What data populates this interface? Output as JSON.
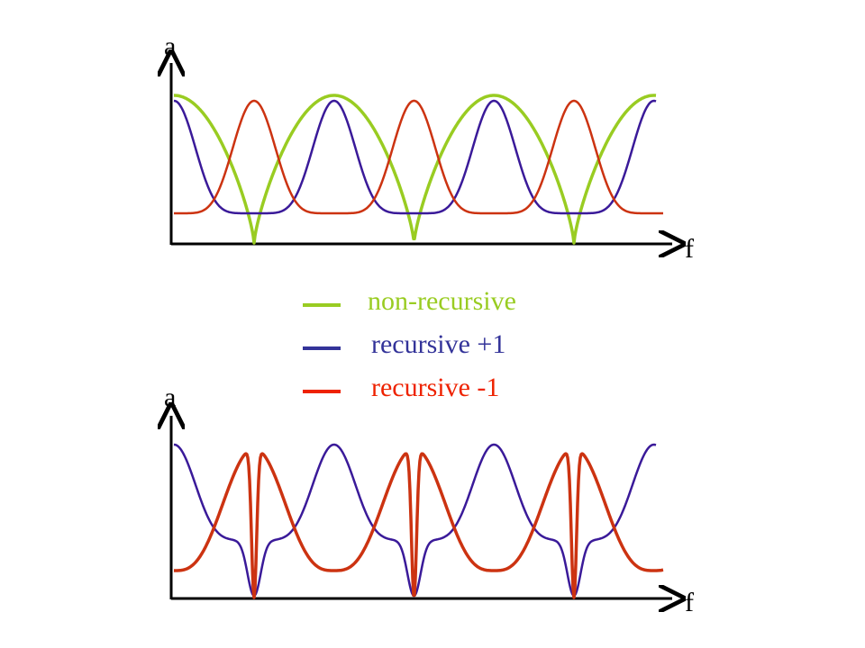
{
  "top_plot": {
    "y_axis_label": "a",
    "x_axis_label": "f"
  },
  "bottom_plot": {
    "y_axis_label": "a",
    "x_axis_label": "f"
  },
  "legend": [
    {
      "label": "non-recursive",
      "color": "#99cc22"
    },
    {
      "label": "recursive  +1",
      "color": "#333399"
    },
    {
      "label": "recursive  -1",
      "color": "#ee2200"
    }
  ],
  "colors": {
    "axis": "#000000",
    "non_recursive": "#99cc22",
    "recursive_plus": "#3a1a99",
    "recursive_minus": "#cc3311"
  }
}
